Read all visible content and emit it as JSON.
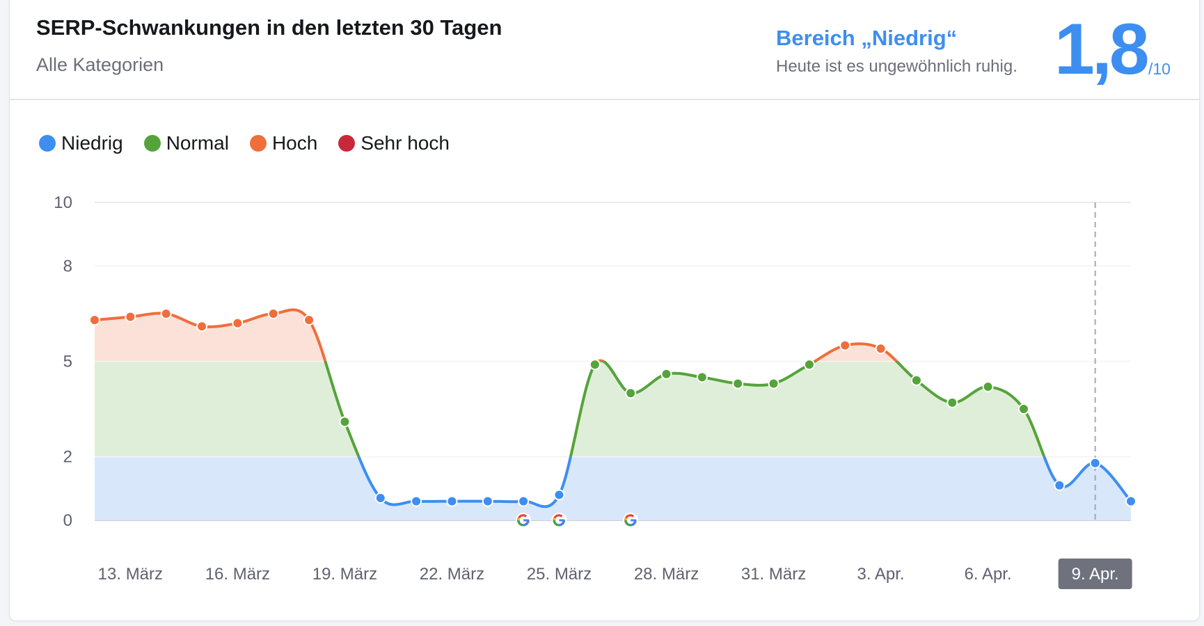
{
  "header": {
    "title": "SERP-Schwankungen in den letzten 30 Tagen",
    "subtitle": "Alle Kategorien",
    "range_label": "Bereich „Niedrig“",
    "range_description": "Heute ist es ungewöhnlich ruhig.",
    "score": "1,8",
    "score_max": "/10"
  },
  "colors": {
    "low": "#3d8ef0",
    "normal": "#55a43a",
    "high": "#f06e3b",
    "very_high": "#c9283a",
    "low_fill": "#d9e7fb",
    "normal_fill": "#dfeed9",
    "high_fill": "#fbe1d7"
  },
  "chart_data": {
    "type": "line",
    "legend": [
      {
        "name": "Niedrig",
        "color": "#3d8ef0"
      },
      {
        "name": "Normal",
        "color": "#55a43a"
      },
      {
        "name": "Hoch",
        "color": "#f06e3b"
      },
      {
        "name": "Sehr hoch",
        "color": "#c9283a"
      }
    ],
    "legend_position": "top-left",
    "ylim": [
      0,
      10
    ],
    "yticks": [
      0,
      2,
      5,
      8,
      10
    ],
    "bands": [
      {
        "name": "Niedrig",
        "from": 0,
        "to": 2
      },
      {
        "name": "Normal",
        "from": 2,
        "to": 5
      },
      {
        "name": "Hoch",
        "from": 5,
        "to": 8
      },
      {
        "name": "Sehr hoch",
        "from": 8,
        "to": 10
      }
    ],
    "grid": true,
    "dates": [
      "12. März",
      "13. März",
      "14. März",
      "15. März",
      "16. März",
      "17. März",
      "18. März",
      "19. März",
      "20. März",
      "21. März",
      "22. März",
      "23. März",
      "24. März",
      "25. März",
      "26. März",
      "27. März",
      "28. März",
      "29. März",
      "30. März",
      "31. März",
      "1. Apr.",
      "2. Apr.",
      "3. Apr.",
      "4. Apr.",
      "5. Apr.",
      "6. Apr.",
      "7. Apr.",
      "8. Apr.",
      "9. Apr.",
      "10. Apr."
    ],
    "values": [
      6.3,
      6.4,
      6.5,
      6.1,
      6.2,
      6.5,
      6.3,
      3.1,
      0.7,
      0.6,
      0.6,
      0.6,
      0.6,
      0.8,
      4.9,
      4.0,
      4.6,
      4.5,
      4.3,
      4.3,
      4.9,
      5.5,
      5.4,
      4.4,
      3.7,
      4.2,
      3.5,
      1.1,
      1.8,
      0.6
    ],
    "xtick_labels": [
      "13. März",
      "16. März",
      "19. März",
      "22. März",
      "25. März",
      "28. März",
      "31. März",
      "3. Apr.",
      "6. Apr.",
      "9. Apr."
    ],
    "highlighted_date": "9. Apr.",
    "google_update_dates": [
      "24. März",
      "25. März",
      "27. März"
    ]
  }
}
